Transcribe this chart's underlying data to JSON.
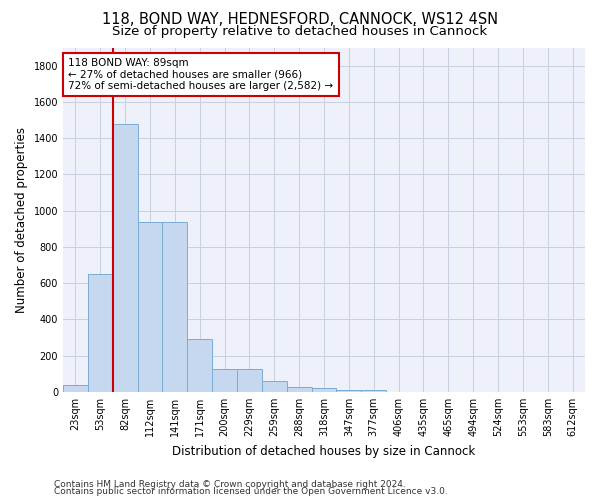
{
  "title_line1": "118, BOND WAY, HEDNESFORD, CANNOCK, WS12 4SN",
  "title_line2": "Size of property relative to detached houses in Cannock",
  "xlabel": "Distribution of detached houses by size in Cannock",
  "ylabel": "Number of detached properties",
  "categories": [
    "23sqm",
    "53sqm",
    "82sqm",
    "112sqm",
    "141sqm",
    "171sqm",
    "200sqm",
    "229sqm",
    "259sqm",
    "288sqm",
    "318sqm",
    "347sqm",
    "377sqm",
    "406sqm",
    "435sqm",
    "465sqm",
    "494sqm",
    "524sqm",
    "553sqm",
    "583sqm",
    "612sqm"
  ],
  "values": [
    40,
    650,
    1480,
    935,
    935,
    290,
    125,
    125,
    60,
    25,
    20,
    12,
    12,
    0,
    0,
    0,
    0,
    0,
    0,
    0,
    0
  ],
  "bar_color": "#c5d8f0",
  "bar_edgecolor": "#7aadd4",
  "redline_index": 2,
  "annotation_text": "118 BOND WAY: 89sqm\n← 27% of detached houses are smaller (966)\n72% of semi-detached houses are larger (2,582) →",
  "annotation_box_color": "#ffffff",
  "annotation_box_edgecolor": "#cc0000",
  "redline_color": "#cc0000",
  "ylim": [
    0,
    1900
  ],
  "yticks": [
    0,
    200,
    400,
    600,
    800,
    1000,
    1200,
    1400,
    1600,
    1800
  ],
  "grid_color": "#c8cfe0",
  "background_color": "#eef1fa",
  "footer_line1": "Contains HM Land Registry data © Crown copyright and database right 2024.",
  "footer_line2": "Contains public sector information licensed under the Open Government Licence v3.0.",
  "title_fontsize": 10.5,
  "subtitle_fontsize": 9.5,
  "axis_label_fontsize": 8.5,
  "tick_fontsize": 7,
  "footer_fontsize": 6.5,
  "annotation_fontsize": 7.5
}
